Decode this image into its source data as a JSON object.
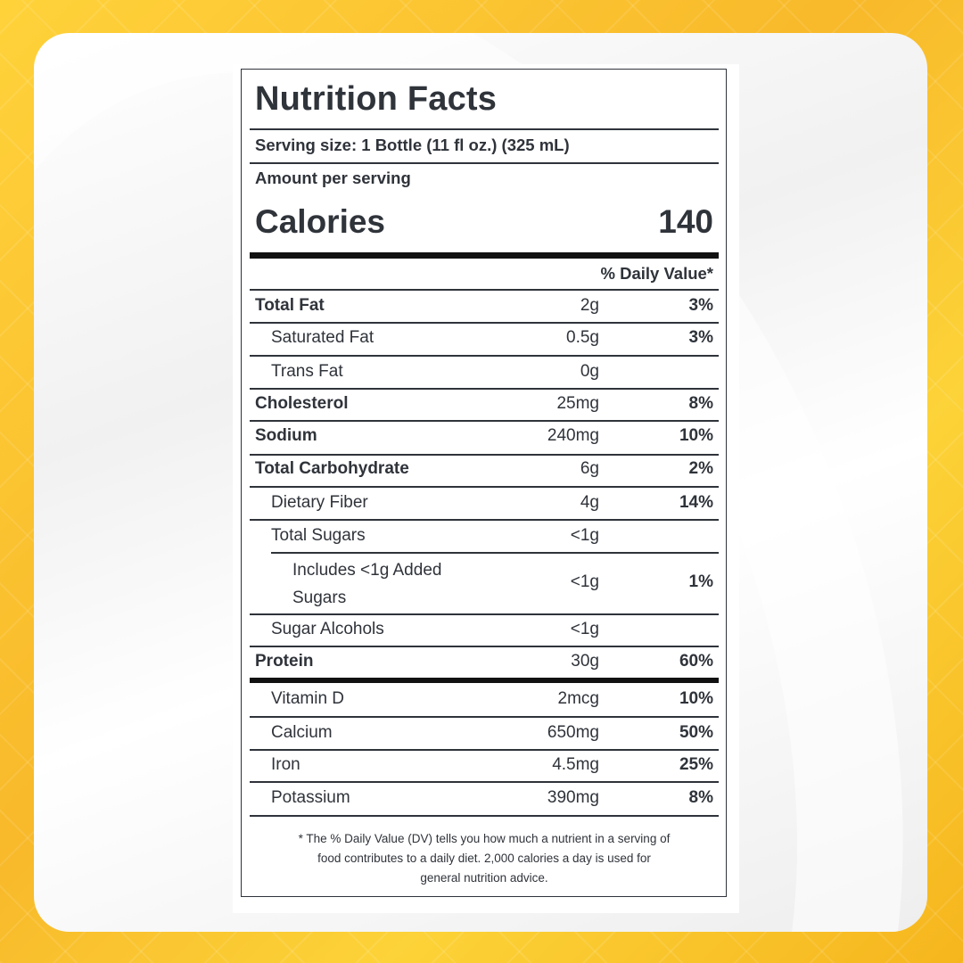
{
  "label": {
    "title": "Nutrition Facts",
    "serving_size": "Serving size: 1 Bottle (11 fl oz.) (325 mL)",
    "amount_per_serving": "Amount per serving",
    "calories_label": "Calories",
    "calories_value": "140",
    "daily_value_header": "% Daily Value*",
    "nutrients": [
      {
        "name": "Total Fat",
        "amount": "2g",
        "dv": "3%"
      },
      {
        "name": "Saturated Fat",
        "amount": "0.5g",
        "dv": "3%"
      },
      {
        "name": "Trans Fat",
        "amount": "0g",
        "dv": ""
      },
      {
        "name": "Cholesterol",
        "amount": "25mg",
        "dv": "8%"
      },
      {
        "name": "Sodium",
        "amount": "240mg",
        "dv": "10%"
      },
      {
        "name": "Total Carbohydrate",
        "amount": "6g",
        "dv": "2%"
      },
      {
        "name": "Dietary Fiber",
        "amount": "4g",
        "dv": "14%"
      },
      {
        "name": "Total Sugars",
        "amount": "<1g",
        "dv": ""
      },
      {
        "name": "Includes <1g Added Sugars",
        "name_line1": "Includes <1g Added",
        "name_line2": "Sugars",
        "amount": "<1g",
        "dv": "1%"
      },
      {
        "name": "Sugar Alcohols",
        "amount": "<1g",
        "dv": ""
      },
      {
        "name": "Protein",
        "amount": "30g",
        "dv": "60%"
      }
    ],
    "vitamins": [
      {
        "name": "Vitamin D",
        "amount": "2mcg",
        "dv": "10%"
      },
      {
        "name": "Calcium",
        "amount": "650mg",
        "dv": "50%"
      },
      {
        "name": "Iron",
        "amount": "4.5mg",
        "dv": "25%"
      },
      {
        "name": "Potassium",
        "amount": "390mg",
        "dv": "8%"
      }
    ],
    "footnote_line1": "* The % Daily Value (DV) tells you how much a nutrient in a serving of",
    "footnote_line2": "food contributes to a daily diet. 2,000 calories a day is used for",
    "footnote_line3": "general nutrition advice."
  },
  "colors": {
    "background": "#f9c22d",
    "card": "#f4f4f4",
    "text": "#2f333a"
  }
}
